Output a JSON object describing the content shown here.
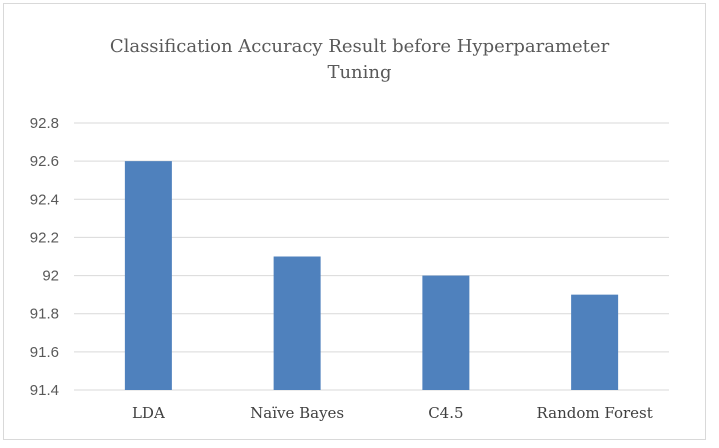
{
  "chart_data": {
    "type": "bar",
    "title_lines": [
      "Classification Accuracy Result before Hyperparameter",
      "Tuning"
    ],
    "categories": [
      "LDA",
      "Naïve Bayes",
      "C4.5",
      "Random Forest"
    ],
    "values": [
      92.6,
      92.1,
      92.0,
      91.9
    ],
    "ylim": [
      91.4,
      92.8
    ],
    "yticks": [
      "91.4",
      "91.6",
      "91.8",
      "92",
      "92.2",
      "92.4",
      "92.6",
      "92.8"
    ],
    "bar_color": "#4f81bd",
    "grid": true,
    "legend": "none"
  }
}
